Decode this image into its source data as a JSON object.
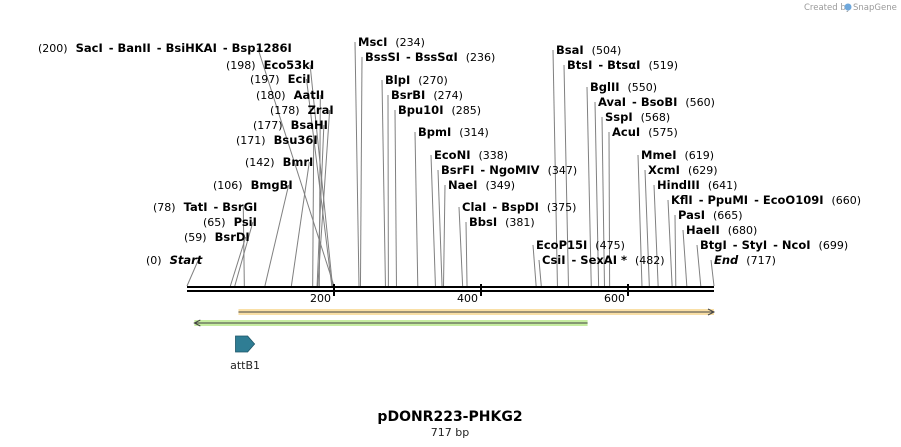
{
  "credit": "Created by",
  "app_name": "SnapGene",
  "plasmid": {
    "name": "pDONR223-PHKG2",
    "length_label": "717 bp",
    "length": 717
  },
  "axis": {
    "ticks": [
      {
        "value": 200,
        "label": "200"
      },
      {
        "value": 400,
        "label": "400"
      },
      {
        "value": 600,
        "label": "600"
      }
    ]
  },
  "sites": [
    {
      "label": "(200)  SacI  - BanII  - BsiHKAI  - Bsp1286I",
      "parts": [
        {
          "t": "(200)",
          "s": "num"
        },
        {
          "t": "SacI",
          "s": "enz"
        },
        {
          "t": "-",
          "s": "enz"
        },
        {
          "t": "BanII",
          "s": "enz"
        },
        {
          "t": "-",
          "s": "enz"
        },
        {
          "t": "BsiHKAI",
          "s": "enz"
        },
        {
          "t": "-",
          "s": "enz"
        },
        {
          "t": "Bsp1286I",
          "s": "enz"
        }
      ],
      "pos": 200
    },
    {
      "label": "(198)  Eco53kI",
      "parts": [
        {
          "t": "(198)",
          "s": "num"
        },
        {
          "t": "Eco53kI",
          "s": "enz"
        }
      ],
      "pos": 198
    },
    {
      "label": "(197)  EciI",
      "parts": [
        {
          "t": "(197)",
          "s": "num"
        },
        {
          "t": "EciI",
          "s": "enz"
        }
      ],
      "pos": 197
    },
    {
      "label": "(180)  AatII",
      "parts": [
        {
          "t": "(180)",
          "s": "num"
        },
        {
          "t": "AatII",
          "s": "enz"
        }
      ],
      "pos": 180
    },
    {
      "label": "(178)  ZraI",
      "parts": [
        {
          "t": "(178)",
          "s": "num"
        },
        {
          "t": "ZraI",
          "s": "enz"
        }
      ],
      "pos": 178
    },
    {
      "label": "(177)  BsaHI",
      "parts": [
        {
          "t": "(177)",
          "s": "num"
        },
        {
          "t": "BsaHI",
          "s": "enz"
        }
      ],
      "pos": 177
    },
    {
      "label": "(171)  Bsu36I",
      "parts": [
        {
          "t": "(171)",
          "s": "num"
        },
        {
          "t": "Bsu36I",
          "s": "enz"
        }
      ],
      "pos": 171
    },
    {
      "label": "(142)  BmrI",
      "parts": [
        {
          "t": "(142)",
          "s": "num"
        },
        {
          "t": "BmrI",
          "s": "enz"
        }
      ],
      "pos": 142
    },
    {
      "label": "(106)  BmgBI",
      "parts": [
        {
          "t": "(106)",
          "s": "num"
        },
        {
          "t": "BmgBI",
          "s": "enz"
        }
      ],
      "pos": 106
    },
    {
      "label": "(78)  TatI  - BsrGI",
      "parts": [
        {
          "t": "(78)",
          "s": "num"
        },
        {
          "t": "TatI",
          "s": "enz"
        },
        {
          "t": "-",
          "s": "enz"
        },
        {
          "t": "BsrGI",
          "s": "enz"
        }
      ],
      "pos": 78
    },
    {
      "label": "(65)  PsiI",
      "parts": [
        {
          "t": "(65)",
          "s": "num"
        },
        {
          "t": "PsiI",
          "s": "enz"
        }
      ],
      "pos": 65
    },
    {
      "label": "(59)  BsrDI",
      "parts": [
        {
          "t": "(59)",
          "s": "num"
        },
        {
          "t": "BsrDI",
          "s": "enz"
        }
      ],
      "pos": 59
    },
    {
      "label": "(0)  Start",
      "parts": [
        {
          "t": "(0)",
          "s": "num"
        },
        {
          "t": "Start",
          "s": "it"
        }
      ],
      "pos": 0
    },
    {
      "label": "MscI  (234)",
      "parts": [
        {
          "t": "MscI",
          "s": "enz"
        },
        {
          "t": "(234)",
          "s": "num"
        }
      ],
      "pos": 234
    },
    {
      "label": "BssSI  - BssSαI  (236)",
      "parts": [
        {
          "t": "BssSI",
          "s": "enz"
        },
        {
          "t": "-",
          "s": "enz"
        },
        {
          "t": "BssSαI",
          "s": "enz"
        },
        {
          "t": "(236)",
          "s": "num"
        }
      ],
      "pos": 236
    },
    {
      "label": "BlpI  (270)",
      "parts": [
        {
          "t": "BlpI",
          "s": "enz"
        },
        {
          "t": "(270)",
          "s": "num"
        }
      ],
      "pos": 270
    },
    {
      "label": "BsrBI  (274)",
      "parts": [
        {
          "t": "BsrBI",
          "s": "enz"
        },
        {
          "t": "(274)",
          "s": "num"
        }
      ],
      "pos": 274
    },
    {
      "label": "Bpu10I  (285)",
      "parts": [
        {
          "t": "Bpu10I",
          "s": "enz"
        },
        {
          "t": "(285)",
          "s": "num"
        }
      ],
      "pos": 285
    },
    {
      "label": "BpmI  (314)",
      "parts": [
        {
          "t": "BpmI",
          "s": "enz"
        },
        {
          "t": "(314)",
          "s": "num"
        }
      ],
      "pos": 314
    },
    {
      "label": "EcoNI  (338)",
      "parts": [
        {
          "t": "EcoNI",
          "s": "enz"
        },
        {
          "t": "(338)",
          "s": "num"
        }
      ],
      "pos": 338
    },
    {
      "label": "BsrFI  - NgoMIV  (347)",
      "parts": [
        {
          "t": "BsrFI",
          "s": "enz"
        },
        {
          "t": "-",
          "s": "enz"
        },
        {
          "t": "NgoMIV",
          "s": "enz"
        },
        {
          "t": "(347)",
          "s": "num"
        }
      ],
      "pos": 347
    },
    {
      "label": "NaeI  (349)",
      "parts": [
        {
          "t": "NaeI",
          "s": "enz"
        },
        {
          "t": "(349)",
          "s": "num"
        }
      ],
      "pos": 349
    },
    {
      "label": "ClaI  - BspDI  (375)",
      "parts": [
        {
          "t": "ClaI",
          "s": "enz"
        },
        {
          "t": "-",
          "s": "enz"
        },
        {
          "t": "BspDI",
          "s": "enz"
        },
        {
          "t": "(375)",
          "s": "num"
        }
      ],
      "pos": 375
    },
    {
      "label": "BbsI  (381)",
      "parts": [
        {
          "t": "BbsI",
          "s": "enz"
        },
        {
          "t": "(381)",
          "s": "num"
        }
      ],
      "pos": 381
    },
    {
      "label": "BsaI  (504)",
      "parts": [
        {
          "t": "BsaI",
          "s": "enz"
        },
        {
          "t": "(504)",
          "s": "num"
        }
      ],
      "pos": 504
    },
    {
      "label": "BtsI  - BtsαI  (519)",
      "parts": [
        {
          "t": "BtsI",
          "s": "enz"
        },
        {
          "t": "-",
          "s": "enz"
        },
        {
          "t": "BtsαI",
          "s": "enz"
        },
        {
          "t": "(519)",
          "s": "num"
        }
      ],
      "pos": 519
    },
    {
      "label": "BglII  (550)",
      "parts": [
        {
          "t": "BglII",
          "s": "enz"
        },
        {
          "t": "(550)",
          "s": "num"
        }
      ],
      "pos": 550
    },
    {
      "label": "AvaI  - BsoBI  (560)",
      "parts": [
        {
          "t": "AvaI",
          "s": "enz"
        },
        {
          "t": "-",
          "s": "enz"
        },
        {
          "t": "BsoBI",
          "s": "enz"
        },
        {
          "t": "(560)",
          "s": "num"
        }
      ],
      "pos": 560
    },
    {
      "label": "SspI  (568)",
      "parts": [
        {
          "t": "SspI",
          "s": "enz"
        },
        {
          "t": "(568)",
          "s": "num"
        }
      ],
      "pos": 568
    },
    {
      "label": "AcuI  (575)",
      "parts": [
        {
          "t": "AcuI",
          "s": "enz"
        },
        {
          "t": "(575)",
          "s": "num"
        }
      ],
      "pos": 575
    },
    {
      "label": "EcoP15I  (475)",
      "parts": [
        {
          "t": "EcoP15I",
          "s": "enz"
        },
        {
          "t": "(475)",
          "s": "num"
        }
      ],
      "pos": 475
    },
    {
      "label": "CsiI  - SexAI *  (482)",
      "parts": [
        {
          "t": "CsiI",
          "s": "enz"
        },
        {
          "t": "-",
          "s": "enz"
        },
        {
          "t": "SexAI *",
          "s": "enz"
        },
        {
          "t": "(482)",
          "s": "num"
        }
      ],
      "pos": 482
    },
    {
      "label": "MmeI  (619)",
      "parts": [
        {
          "t": "MmeI",
          "s": "enz"
        },
        {
          "t": "(619)",
          "s": "num"
        }
      ],
      "pos": 619
    },
    {
      "label": "XcmI  (629)",
      "parts": [
        {
          "t": "XcmI",
          "s": "enz"
        },
        {
          "t": "(629)",
          "s": "num"
        }
      ],
      "pos": 629
    },
    {
      "label": "HindIII  (641)",
      "parts": [
        {
          "t": "HindIII",
          "s": "enz"
        },
        {
          "t": "(641)",
          "s": "num"
        }
      ],
      "pos": 641
    },
    {
      "label": "KflI  - PpuMI  - EcoO109I  (660)",
      "parts": [
        {
          "t": "KflI",
          "s": "enz"
        },
        {
          "t": "-",
          "s": "enz"
        },
        {
          "t": "PpuMI",
          "s": "enz"
        },
        {
          "t": "-",
          "s": "enz"
        },
        {
          "t": "EcoO109I",
          "s": "enz"
        },
        {
          "t": "(660)",
          "s": "num"
        }
      ],
      "pos": 660
    },
    {
      "label": "PasI  (665)",
      "parts": [
        {
          "t": "PasI",
          "s": "enz"
        },
        {
          "t": "(665)",
          "s": "num"
        }
      ],
      "pos": 665
    },
    {
      "label": "HaeII  (680)",
      "parts": [
        {
          "t": "HaeII",
          "s": "enz"
        },
        {
          "t": "(680)",
          "s": "num"
        }
      ],
      "pos": 680
    },
    {
      "label": "BtgI  - StyI  - NcoI  (699)",
      "parts": [
        {
          "t": "BtgI",
          "s": "enz"
        },
        {
          "t": "-",
          "s": "enz"
        },
        {
          "t": "StyI",
          "s": "enz"
        },
        {
          "t": "-",
          "s": "enz"
        },
        {
          "t": "NcoI",
          "s": "enz"
        },
        {
          "t": "(699)",
          "s": "num"
        }
      ],
      "pos": 699
    },
    {
      "label": "End  (717)",
      "parts": [
        {
          "t": "End",
          "s": "it"
        },
        {
          "t": "(717)",
          "s": "num"
        }
      ],
      "pos": 717
    }
  ],
  "tracks": [
    {
      "name": "orange-range",
      "from": 70,
      "to": 717,
      "direction": "forward",
      "color": "#f0a020",
      "fill": "#f9dfa6"
    },
    {
      "name": "green-range",
      "from": 10,
      "to": 545,
      "direction": "reverse",
      "color": "#4aa02c",
      "fill": "#c6eda0"
    }
  ],
  "features": [
    {
      "name": "attB1",
      "start": 66,
      "end": 92,
      "direction": "forward",
      "color": "#2f7d94"
    }
  ],
  "colors": {
    "backbone": "#000000",
    "leader": "#808080"
  }
}
